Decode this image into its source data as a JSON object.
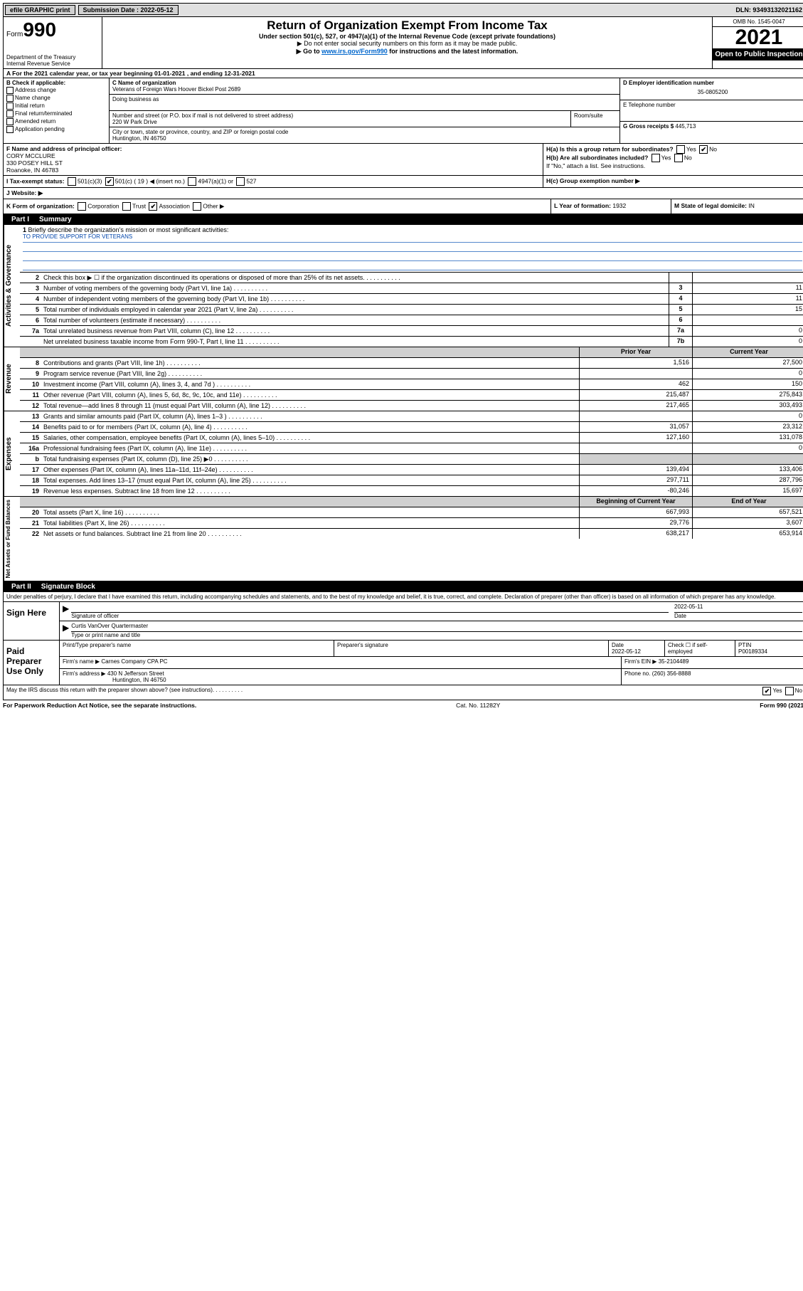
{
  "topbar": {
    "efile_label": "efile GRAPHIC print",
    "sub_label": "Submission Date : 2022-05-12",
    "dln": "DLN: 93493132021162"
  },
  "header": {
    "form_word": "Form",
    "form_num": "990",
    "dept": "Department of the Treasury",
    "irs": "Internal Revenue Service",
    "title": "Return of Organization Exempt From Income Tax",
    "sub1": "Under section 501(c), 527, or 4947(a)(1) of the Internal Revenue Code (except private foundations)",
    "sub2": "▶ Do not enter social security numbers on this form as it may be made public.",
    "sub3_pre": "▶ Go to ",
    "sub3_link": "www.irs.gov/Form990",
    "sub3_post": " for instructions and the latest information.",
    "omb": "OMB No. 1545-0047",
    "year": "2021",
    "open": "Open to Public Inspection"
  },
  "row_a": "A For the 2021 calendar year, or tax year beginning 01-01-2021   , and ending 12-31-2021",
  "col_b": {
    "label": "B Check if applicable:",
    "items": [
      "Address change",
      "Name change",
      "Initial return",
      "Final return/terminated",
      "Amended return",
      "Application pending"
    ]
  },
  "col_c": {
    "name_label": "C Name of organization",
    "name": "Veterans of Foreign Wars Hoover Bickel Post 2689",
    "dba_label": "Doing business as",
    "addr_label": "Number and street (or P.O. box if mail is not delivered to street address)",
    "room_label": "Room/suite",
    "addr": "220 W Park Drive",
    "city_label": "City or town, state or province, country, and ZIP or foreign postal code",
    "city": "Huntington, IN  46750"
  },
  "col_de": {
    "d_label": "D Employer identification number",
    "d_val": "35-0805200",
    "e_label": "E Telephone number",
    "g_label": "G Gross receipts $ ",
    "g_val": "445,713"
  },
  "row_f": {
    "f_label": "F  Name and address of principal officer:",
    "f_name": "CORY MCCLURE",
    "f_addr1": "330 POSEY HILL ST",
    "f_addr2": "Roanoke, IN  46783",
    "ha_label": "H(a)  Is this a group return for subordinates?",
    "hb_label": "H(b)  Are all subordinates included?",
    "hb_note": "If \"No,\" attach a list. See instructions.",
    "yes": "Yes",
    "no": "No"
  },
  "row_i": {
    "label": "I     Tax-exempt status:",
    "c3": "501(c)(3)",
    "c": "501(c) ( 19 ) ◀ (insert no.)",
    "a1": "4947(a)(1) or",
    "527": "527"
  },
  "row_j": {
    "label": "J    Website: ▶",
    "hc": "H(c)  Group exemption number ▶"
  },
  "row_k": {
    "k_label": "K Form of organization:",
    "corp": "Corporation",
    "trust": "Trust",
    "assoc": "Association",
    "other": "Other ▶",
    "l_label": "L Year of formation: ",
    "l_val": "1932",
    "m_label": "M State of legal domicile: ",
    "m_val": "IN"
  },
  "part1": {
    "label": "Part I",
    "title": "Summary"
  },
  "sidebar": {
    "gov": "Activities & Governance",
    "rev": "Revenue",
    "exp": "Expenses",
    "net": "Net Assets or Fund Balances"
  },
  "mission": {
    "num": "1",
    "label": "Briefly describe the organization's mission or most significant activities:",
    "text": "TO PROVIDE SUPPORT FOR VETERANS"
  },
  "gov_rows": [
    {
      "n": "2",
      "t": "Check this box ▶ ☐  if the organization discontinued its operations or disposed of more than 25% of its net assets.",
      "nc": "",
      "v": ""
    },
    {
      "n": "3",
      "t": "Number of voting members of the governing body (Part VI, line 1a)",
      "nc": "3",
      "v": "11"
    },
    {
      "n": "4",
      "t": "Number of independent voting members of the governing body (Part VI, line 1b)",
      "nc": "4",
      "v": "11"
    },
    {
      "n": "5",
      "t": "Total number of individuals employed in calendar year 2021 (Part V, line 2a)",
      "nc": "5",
      "v": "15"
    },
    {
      "n": "6",
      "t": "Total number of volunteers (estimate if necessary)",
      "nc": "6",
      "v": ""
    },
    {
      "n": "7a",
      "t": "Total unrelated business revenue from Part VIII, column (C), line 12",
      "nc": "7a",
      "v": "0"
    },
    {
      "n": "",
      "t": "Net unrelated business taxable income from Form 990-T, Part I, line 11",
      "nc": "7b",
      "v": "0"
    }
  ],
  "two_col_head": {
    "prior": "Prior Year",
    "current": "Current Year"
  },
  "rev_rows": [
    {
      "n": "8",
      "t": "Contributions and grants (Part VIII, line 1h)",
      "p": "1,516",
      "c": "27,500"
    },
    {
      "n": "9",
      "t": "Program service revenue (Part VIII, line 2g)",
      "p": "",
      "c": "0"
    },
    {
      "n": "10",
      "t": "Investment income (Part VIII, column (A), lines 3, 4, and 7d )",
      "p": "462",
      "c": "150"
    },
    {
      "n": "11",
      "t": "Other revenue (Part VIII, column (A), lines 5, 6d, 8c, 9c, 10c, and 11e)",
      "p": "215,487",
      "c": "275,843"
    },
    {
      "n": "12",
      "t": "Total revenue—add lines 8 through 11 (must equal Part VIII, column (A), line 12)",
      "p": "217,465",
      "c": "303,493"
    }
  ],
  "exp_rows": [
    {
      "n": "13",
      "t": "Grants and similar amounts paid (Part IX, column (A), lines 1–3 )",
      "p": "",
      "c": "0"
    },
    {
      "n": "14",
      "t": "Benefits paid to or for members (Part IX, column (A), line 4)",
      "p": "31,057",
      "c": "23,312"
    },
    {
      "n": "15",
      "t": "Salaries, other compensation, employee benefits (Part IX, column (A), lines 5–10)",
      "p": "127,160",
      "c": "131,078"
    },
    {
      "n": "16a",
      "t": "Professional fundraising fees (Part IX, column (A), line 11e)",
      "p": "",
      "c": "0"
    },
    {
      "n": "b",
      "t": "Total fundraising expenses (Part IX, column (D), line 25) ▶0",
      "p": "",
      "c": "",
      "shade": true
    },
    {
      "n": "17",
      "t": "Other expenses (Part IX, column (A), lines 11a–11d, 11f–24e)",
      "p": "139,494",
      "c": "133,406"
    },
    {
      "n": "18",
      "t": "Total expenses. Add lines 13–17 (must equal Part IX, column (A), line 25)",
      "p": "297,711",
      "c": "287,796"
    },
    {
      "n": "19",
      "t": "Revenue less expenses. Subtract line 18 from line 12",
      "p": "-80,246",
      "c": "15,697"
    }
  ],
  "net_head": {
    "beg": "Beginning of Current Year",
    "end": "End of Year"
  },
  "net_rows": [
    {
      "n": "20",
      "t": "Total assets (Part X, line 16)",
      "p": "667,993",
      "c": "657,521"
    },
    {
      "n": "21",
      "t": "Total liabilities (Part X, line 26)",
      "p": "29,776",
      "c": "3,607"
    },
    {
      "n": "22",
      "t": "Net assets or fund balances. Subtract line 21 from line 20",
      "p": "638,217",
      "c": "653,914"
    }
  ],
  "part2": {
    "label": "Part II",
    "title": "Signature Block"
  },
  "sig": {
    "decl": "Under penalties of perjury, I declare that I have examined this return, including accompanying schedules and statements, and to the best of my knowledge and belief, it is true, correct, and complete. Declaration of preparer (other than officer) is based on all information of which preparer has any knowledge.",
    "sign_here": "Sign Here",
    "sig_label": "Signature of officer",
    "date_label": "Date",
    "date_val": "2022-05-11",
    "name": "Curtis VanOver Quartermaster",
    "name_label": "Type or print name and title",
    "paid": "Paid Preparer Use Only",
    "prep_name_label": "Print/Type preparer's name",
    "prep_sig_label": "Preparer's signature",
    "prep_date_label": "Date",
    "prep_date": "2022-05-12",
    "check_label": "Check ☐ if self-employed",
    "ptin_label": "PTIN",
    "ptin": "P00189334",
    "firm_name_label": "Firm's name     ▶ ",
    "firm_name": "Carnes Company CPA PC",
    "firm_ein_label": "Firm's EIN ▶ ",
    "firm_ein": "35-2104489",
    "firm_addr_label": "Firm's address ▶ ",
    "firm_addr1": "430 N Jefferson Street",
    "firm_addr2": "Huntington, IN  46750",
    "phone_label": "Phone no. ",
    "phone": "(260) 356-8888",
    "may_irs": "May the IRS discuss this return with the preparer shown above? (see instructions)"
  },
  "footer": {
    "left": "For Paperwork Reduction Act Notice, see the separate instructions.",
    "mid": "Cat. No. 11282Y",
    "right": "Form 990 (2021)"
  }
}
